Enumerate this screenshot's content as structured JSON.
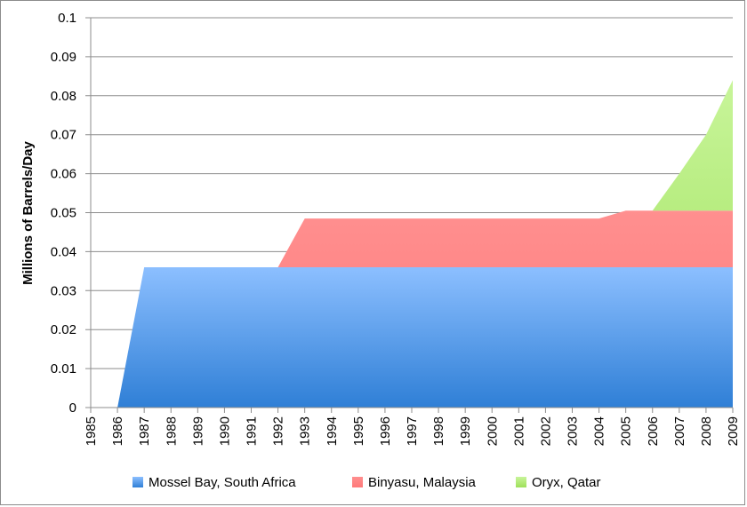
{
  "chart_data": {
    "type": "area",
    "stacked": true,
    "title": "",
    "xlabel": "",
    "ylabel": "Millions of Barrels/Day",
    "ylim": [
      0,
      0.1
    ],
    "yticks": [
      "0",
      "0.01",
      "0.02",
      "0.03",
      "0.04",
      "0.05",
      "0.06",
      "0.07",
      "0.08",
      "0.09",
      "0.1"
    ],
    "categories": [
      "1985",
      "1986",
      "1987",
      "1988",
      "1989",
      "1990",
      "1991",
      "1992",
      "1993",
      "1994",
      "1995",
      "1996",
      "1997",
      "1998",
      "1999",
      "2000",
      "2001",
      "2002",
      "2003",
      "2004",
      "2005",
      "2006",
      "2007",
      "2008",
      "2009"
    ],
    "series": [
      {
        "name": "Mossel Bay, South Africa",
        "color_top": "#8cbfff",
        "color_bottom": "#2f7fd6",
        "values": [
          null,
          0,
          0.036,
          0.036,
          0.036,
          0.036,
          0.036,
          0.036,
          0.036,
          0.036,
          0.036,
          0.036,
          0.036,
          0.036,
          0.036,
          0.036,
          0.036,
          0.036,
          0.036,
          0.036,
          0.036,
          0.036,
          0.036,
          0.036,
          0.036
        ]
      },
      {
        "name": "Binyasu, Malaysia",
        "color_top": "#ff8f8f",
        "color_bottom": "#ff7a7a",
        "values": [
          null,
          0,
          0,
          0,
          0,
          0,
          0,
          0,
          0.0125,
          0.0125,
          0.0125,
          0.0125,
          0.0125,
          0.0125,
          0.0125,
          0.0125,
          0.0125,
          0.0125,
          0.0125,
          0.0125,
          0.0145,
          0.0145,
          0.0145,
          0.0145,
          0.0145
        ]
      },
      {
        "name": "Oryx, Qatar",
        "color_top": "#c8f59a",
        "color_bottom": "#9ee05a",
        "values": [
          null,
          0,
          0,
          0,
          0,
          0,
          0,
          0,
          0,
          0,
          0,
          0,
          0,
          0,
          0,
          0,
          0,
          0,
          0,
          0,
          0,
          0,
          0.0095,
          0.0195,
          0.0335
        ]
      }
    ],
    "grid": true,
    "legend": "bottom"
  }
}
